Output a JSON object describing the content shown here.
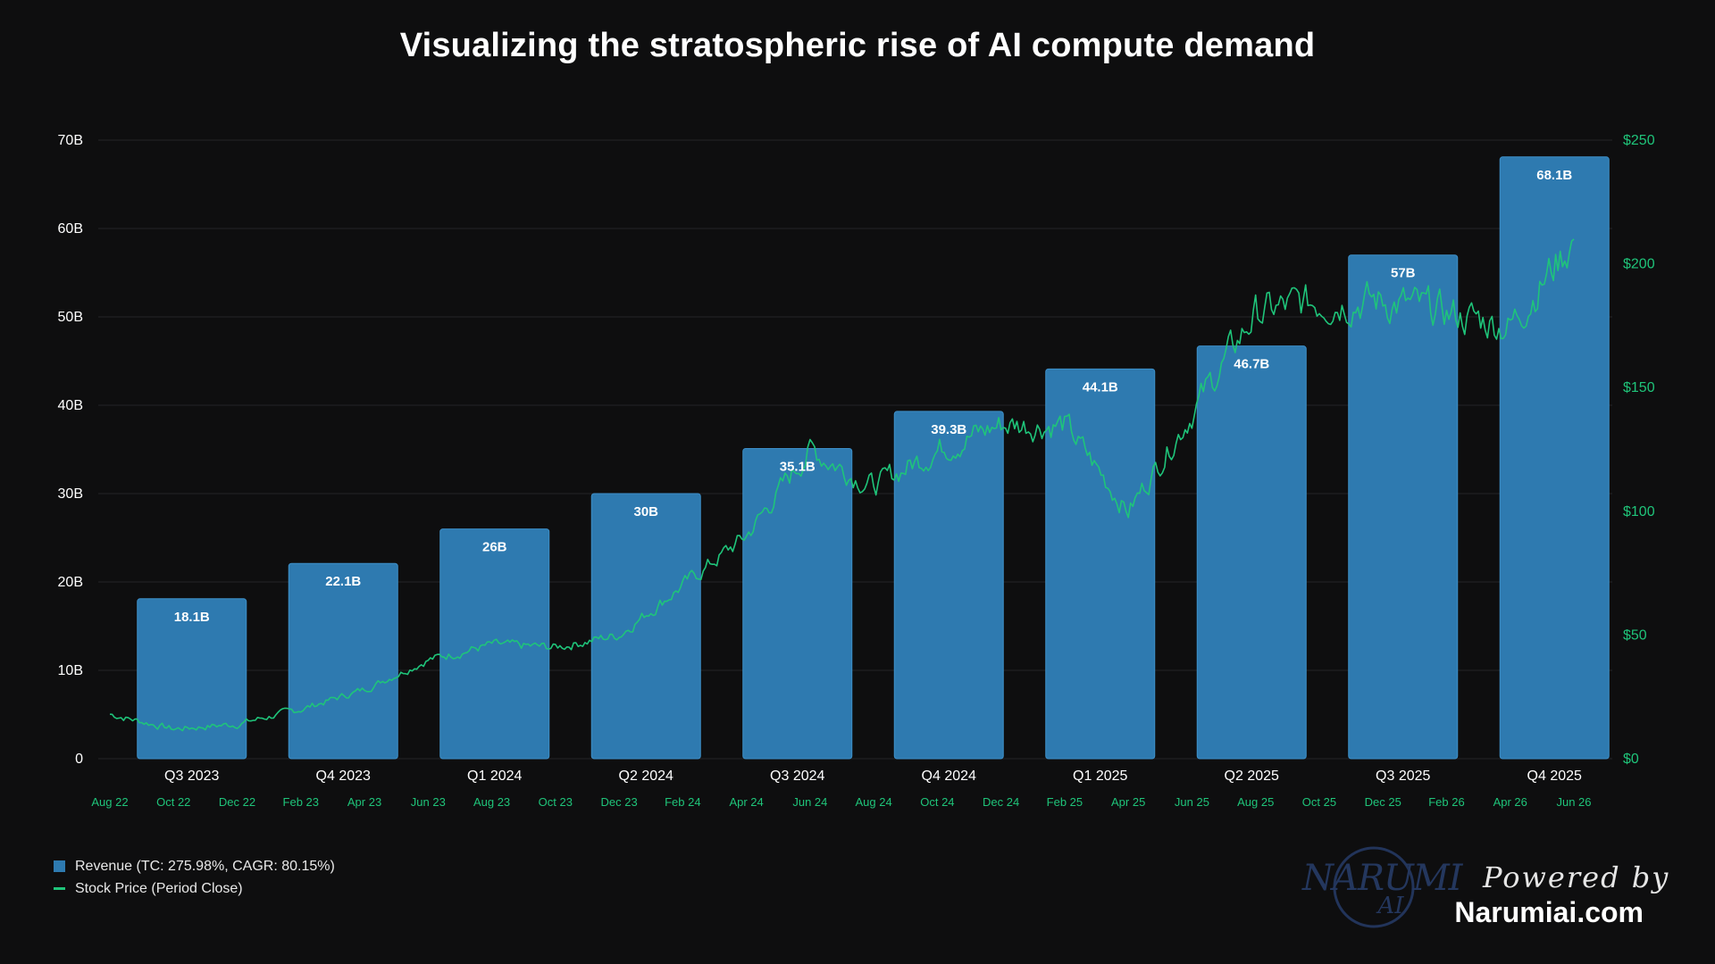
{
  "title": "Visualizing the stratospheric rise of AI compute demand",
  "colors": {
    "background": "#0e0e0f",
    "bar": "#2e7ab0",
    "bar_border": "#3d8fc8",
    "line": "#1fc47a",
    "grid": "#242427",
    "text": "#ffffff",
    "right_axis": "#1fc47a"
  },
  "legend": {
    "revenue": "Revenue (TC: 275.98%, CAGR: 80.15%)",
    "stock": "Stock Price (Period Close)"
  },
  "brand": {
    "logo_icon": "narumi-ai-logo",
    "logo_text": "NARUMI",
    "logo_sub": "AI",
    "powered_by": "Powered by",
    "site": "Narumiai.com"
  },
  "chart_data": {
    "type": "bar",
    "title": "Visualizing the stratospheric rise of AI compute demand",
    "categories": [
      "Q3 2023",
      "Q4 2023",
      "Q1 2024",
      "Q2 2024",
      "Q3 2024",
      "Q4 2024",
      "Q1 2025",
      "Q2 2025",
      "Q3 2025",
      "Q4 2025"
    ],
    "series": [
      {
        "name": "Revenue (TC: 275.98%, CAGR: 80.15%)",
        "type": "bar",
        "axis": "left",
        "values": [
          18.1,
          22.1,
          26,
          30,
          35.1,
          39.3,
          44.1,
          46.7,
          57,
          68.1
        ],
        "labels": [
          "18.1B",
          "22.1B",
          "26B",
          "30B",
          "35.1B",
          "39.3B",
          "44.1B",
          "46.7B",
          "57B",
          "68.1B"
        ]
      },
      {
        "name": "Stock Price (Period Close)",
        "type": "line",
        "axis": "right",
        "x": [
          "Aug 22",
          "Oct 22",
          "Dec 22",
          "Feb 23",
          "Apr 23",
          "Jun 23",
          "Aug 23",
          "Oct 23",
          "Dec 23",
          "Feb 24",
          "Apr 24",
          "Jun 24",
          "Aug 24",
          "Oct 24",
          "Dec 24",
          "Feb 25",
          "Apr 25",
          "Jun 25",
          "Aug 25",
          "Oct 25",
          "Dec 25",
          "Feb 26",
          "Apr 26",
          "Jun 26"
        ],
        "values": [
          18,
          12,
          14,
          20,
          28,
          40,
          46,
          45,
          50,
          70,
          90,
          125,
          110,
          125,
          135,
          135,
          100,
          140,
          180,
          185,
          185,
          180,
          175,
          210
        ]
      }
    ],
    "left_axis": {
      "ticks": [
        "0",
        "10B",
        "20B",
        "30B",
        "40B",
        "50B",
        "60B",
        "70B"
      ],
      "tick_values": [
        0,
        10,
        20,
        30,
        40,
        50,
        60,
        70
      ],
      "ylim": [
        0,
        70
      ]
    },
    "right_axis": {
      "ticks": [
        "$0",
        "$50",
        "$100",
        "$150",
        "$200",
        "$250"
      ],
      "tick_values": [
        0,
        50,
        100,
        150,
        200,
        250
      ],
      "ylim": [
        0,
        250
      ]
    },
    "date_axis": {
      "ticks": [
        "Aug 22",
        "Oct 22",
        "Dec 22",
        "Feb 23",
        "Apr 23",
        "Jun 23",
        "Aug 23",
        "Oct 23",
        "Dec 23",
        "Feb 24",
        "Apr 24",
        "Jun 24",
        "Aug 24",
        "Oct 24",
        "Dec 24",
        "Feb 25",
        "Apr 25",
        "Jun 25",
        "Aug 25",
        "Oct 25",
        "Dec 25",
        "Feb 26",
        "Apr 26",
        "Jun 26"
      ]
    },
    "grid": true,
    "legend_position": "bottom-left"
  }
}
